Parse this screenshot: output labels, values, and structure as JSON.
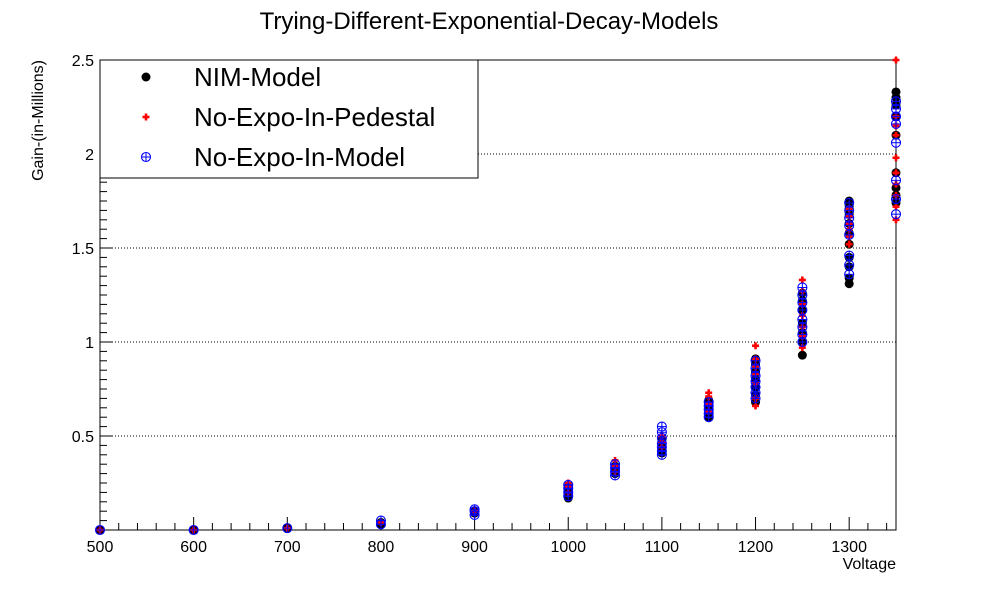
{
  "chart_data": {
    "type": "scatter",
    "title": "Trying-Different-Exponential-Decay-Models",
    "xlabel": "Voltage",
    "ylabel": "Gain-(in-Millions)",
    "xlim": [
      500,
      1350
    ],
    "ylim": [
      0,
      2.5
    ],
    "x_ticks": [
      500,
      600,
      700,
      800,
      900,
      1000,
      1100,
      1200,
      1300
    ],
    "y_ticks": [
      0.5,
      1,
      1.5,
      2,
      2.5
    ],
    "x_tick_labels": [
      "500",
      "600",
      "700",
      "800",
      "900",
      "1000",
      "1100",
      "1200",
      "1300"
    ],
    "y_tick_labels": [
      "0.5",
      "1",
      "1.5",
      "2",
      "2.5"
    ],
    "grid": "horizontal-dotted",
    "legend_position": "top-left",
    "series": [
      {
        "name": "NIM-Model",
        "marker": "filled-circle",
        "color": "#000000",
        "points": [
          [
            500,
            0.0
          ],
          [
            600,
            0.0
          ],
          [
            700,
            0.01
          ],
          [
            800,
            0.03
          ],
          [
            800,
            0.04
          ],
          [
            900,
            0.09
          ],
          [
            900,
            0.1
          ],
          [
            1000,
            0.17
          ],
          [
            1000,
            0.19
          ],
          [
            1000,
            0.21
          ],
          [
            1000,
            0.23
          ],
          [
            1050,
            0.3
          ],
          [
            1050,
            0.32
          ],
          [
            1050,
            0.34
          ],
          [
            1100,
            0.41
          ],
          [
            1100,
            0.43
          ],
          [
            1100,
            0.45
          ],
          [
            1100,
            0.48
          ],
          [
            1150,
            0.6
          ],
          [
            1150,
            0.63
          ],
          [
            1150,
            0.66
          ],
          [
            1150,
            0.69
          ],
          [
            1200,
            0.68
          ],
          [
            1200,
            0.72
          ],
          [
            1200,
            0.76
          ],
          [
            1200,
            0.8
          ],
          [
            1200,
            0.84
          ],
          [
            1200,
            0.88
          ],
          [
            1200,
            0.91
          ],
          [
            1250,
            0.93
          ],
          [
            1250,
            1.0
          ],
          [
            1250,
            1.05
          ],
          [
            1250,
            1.1
          ],
          [
            1250,
            1.17
          ],
          [
            1250,
            1.22
          ],
          [
            1250,
            1.26
          ],
          [
            1300,
            1.31
          ],
          [
            1300,
            1.34
          ],
          [
            1300,
            1.4
          ],
          [
            1300,
            1.45
          ],
          [
            1300,
            1.52
          ],
          [
            1300,
            1.58
          ],
          [
            1300,
            1.63
          ],
          [
            1300,
            1.68
          ],
          [
            1300,
            1.72
          ],
          [
            1300,
            1.75
          ],
          [
            1350,
            1.74
          ],
          [
            1350,
            1.78
          ],
          [
            1350,
            1.82
          ],
          [
            1350,
            1.9
          ],
          [
            1350,
            2.1
          ],
          [
            1350,
            2.2
          ],
          [
            1350,
            2.26
          ],
          [
            1350,
            2.3
          ],
          [
            1350,
            2.33
          ]
        ]
      },
      {
        "name": "No-Expo-In-Pedestal",
        "marker": "plus",
        "color": "#ff0000",
        "points": [
          [
            500,
            0.0
          ],
          [
            600,
            0.0
          ],
          [
            700,
            0.01
          ],
          [
            800,
            0.04
          ],
          [
            900,
            0.1
          ],
          [
            1000,
            0.2
          ],
          [
            1000,
            0.23
          ],
          [
            1000,
            0.25
          ],
          [
            1050,
            0.31
          ],
          [
            1050,
            0.34
          ],
          [
            1050,
            0.37
          ],
          [
            1100,
            0.44
          ],
          [
            1100,
            0.47
          ],
          [
            1100,
            0.5
          ],
          [
            1150,
            0.63
          ],
          [
            1150,
            0.67
          ],
          [
            1150,
            0.71
          ],
          [
            1150,
            0.73
          ],
          [
            1200,
            0.66
          ],
          [
            1200,
            0.7
          ],
          [
            1200,
            0.78
          ],
          [
            1200,
            0.83
          ],
          [
            1200,
            0.87
          ],
          [
            1200,
            0.91
          ],
          [
            1200,
            0.98
          ],
          [
            1250,
            0.97
          ],
          [
            1250,
            1.03
          ],
          [
            1250,
            1.08
          ],
          [
            1250,
            1.14
          ],
          [
            1250,
            1.2
          ],
          [
            1250,
            1.27
          ],
          [
            1250,
            1.33
          ],
          [
            1300,
            1.52
          ],
          [
            1300,
            1.56
          ],
          [
            1300,
            1.6
          ],
          [
            1300,
            1.63
          ],
          [
            1300,
            1.67
          ],
          [
            1300,
            1.71
          ],
          [
            1350,
            1.65
          ],
          [
            1350,
            1.72
          ],
          [
            1350,
            1.78
          ],
          [
            1350,
            1.84
          ],
          [
            1350,
            1.9
          ],
          [
            1350,
            1.98
          ],
          [
            1350,
            2.1
          ],
          [
            1350,
            2.15
          ],
          [
            1350,
            2.2
          ],
          [
            1350,
            2.5
          ]
        ]
      },
      {
        "name": "No-Expo-In-Model",
        "marker": "open-circle-plus",
        "color": "#0000ff",
        "points": [
          [
            500,
            0.0
          ],
          [
            600,
            0.0
          ],
          [
            700,
            0.01
          ],
          [
            800,
            0.03
          ],
          [
            800,
            0.05
          ],
          [
            900,
            0.08
          ],
          [
            900,
            0.1
          ],
          [
            900,
            0.11
          ],
          [
            1000,
            0.18
          ],
          [
            1000,
            0.2
          ],
          [
            1000,
            0.22
          ],
          [
            1000,
            0.24
          ],
          [
            1050,
            0.29
          ],
          [
            1050,
            0.31
          ],
          [
            1050,
            0.33
          ],
          [
            1050,
            0.35
          ],
          [
            1100,
            0.4
          ],
          [
            1100,
            0.42
          ],
          [
            1100,
            0.44
          ],
          [
            1100,
            0.46
          ],
          [
            1100,
            0.49
          ],
          [
            1100,
            0.52
          ],
          [
            1100,
            0.55
          ],
          [
            1150,
            0.6
          ],
          [
            1150,
            0.62
          ],
          [
            1150,
            0.64
          ],
          [
            1150,
            0.66
          ],
          [
            1150,
            0.68
          ],
          [
            1200,
            0.7
          ],
          [
            1200,
            0.73
          ],
          [
            1200,
            0.76
          ],
          [
            1200,
            0.79
          ],
          [
            1200,
            0.82
          ],
          [
            1200,
            0.86
          ],
          [
            1200,
            0.9
          ],
          [
            1250,
            1.0
          ],
          [
            1250,
            1.04
          ],
          [
            1250,
            1.08
          ],
          [
            1250,
            1.12
          ],
          [
            1250,
            1.17
          ],
          [
            1250,
            1.21
          ],
          [
            1250,
            1.25
          ],
          [
            1250,
            1.29
          ],
          [
            1300,
            1.36
          ],
          [
            1300,
            1.41
          ],
          [
            1300,
            1.46
          ],
          [
            1300,
            1.57
          ],
          [
            1300,
            1.62
          ],
          [
            1300,
            1.66
          ],
          [
            1300,
            1.7
          ],
          [
            1300,
            1.74
          ],
          [
            1350,
            1.68
          ],
          [
            1350,
            1.76
          ],
          [
            1350,
            1.86
          ],
          [
            1350,
            2.06
          ],
          [
            1350,
            2.16
          ],
          [
            1350,
            2.2
          ],
          [
            1350,
            2.24
          ],
          [
            1350,
            2.28
          ]
        ]
      }
    ]
  }
}
